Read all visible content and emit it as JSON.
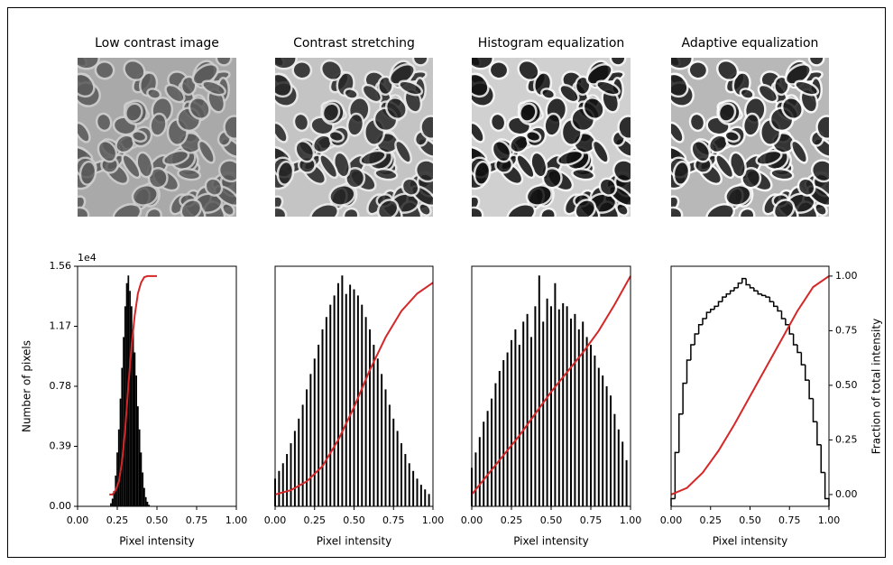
{
  "images": [
    {
      "title": "Low contrast image"
    },
    {
      "title": "Contrast stretching"
    },
    {
      "title": "Histogram equalization"
    },
    {
      "title": "Adaptive equalization"
    }
  ],
  "chart_data": [
    {
      "type": "histogram",
      "xlabel": "Pixel intensity",
      "ylabel": "Number of pixels",
      "yscale_label": "1e4",
      "xlim": [
        0,
        1
      ],
      "ylim": [
        0,
        1.56
      ],
      "y2lim": [
        -0.054,
        1.045
      ],
      "xticks": [
        {
          "value": 0,
          "label": "0.00"
        },
        0.25,
        {
          "value": 0.5,
          "label": "0.50"
        },
        0.75,
        {
          "value": 1,
          "label": "1.00"
        }
      ],
      "yticks": [
        {
          "value": 0,
          "label": "0.00"
        },
        0.39,
        0.78,
        1.17,
        1.56
      ],
      "series": [
        {
          "type": "bar",
          "color": "#000000",
          "rwidth": 1,
          "x": [
            0.21,
            0.22,
            0.23,
            0.24,
            0.25,
            0.26,
            0.27,
            0.28,
            0.29,
            0.3,
            0.31,
            0.32,
            0.33,
            0.34,
            0.35,
            0.36,
            0.37,
            0.38,
            0.39,
            0.4,
            0.41,
            0.42,
            0.43,
            0.44,
            0.45
          ],
          "values": [
            0.02,
            0.05,
            0.1,
            0.2,
            0.35,
            0.5,
            0.7,
            0.9,
            1.1,
            1.3,
            1.45,
            1.5,
            1.4,
            1.3,
            1.15,
            1.0,
            0.85,
            0.65,
            0.5,
            0.35,
            0.22,
            0.12,
            0.06,
            0.03,
            0.01
          ]
        },
        {
          "type": "line",
          "color": "#d62728",
          "axis": "y2",
          "x": [
            0.2,
            0.22,
            0.24,
            0.26,
            0.28,
            0.3,
            0.32,
            0.34,
            0.36,
            0.38,
            0.4,
            0.42,
            0.44,
            0.5
          ],
          "values": [
            0,
            0,
            0.02,
            0.06,
            0.15,
            0.3,
            0.5,
            0.68,
            0.82,
            0.92,
            0.97,
            0.995,
            1,
            1
          ]
        }
      ]
    },
    {
      "type": "histogram",
      "xlabel": "Pixel intensity",
      "xlim": [
        0,
        1
      ],
      "ylim": [
        0,
        1.56
      ],
      "y2lim": [
        -0.054,
        1.045
      ],
      "xticks": [
        {
          "value": 0,
          "label": "0.00"
        },
        0.25,
        {
          "value": 0.5,
          "label": "0.50"
        },
        0.75,
        {
          "value": 1,
          "label": "1.00"
        }
      ],
      "series": [
        {
          "type": "bar",
          "color": "#000000",
          "rwidth": 0.45,
          "x": [
            0,
            0.025,
            0.05,
            0.075,
            0.1,
            0.125,
            0.15,
            0.175,
            0.2,
            0.225,
            0.25,
            0.275,
            0.3,
            0.325,
            0.35,
            0.375,
            0.4,
            0.425,
            0.45,
            0.475,
            0.5,
            0.525,
            0.55,
            0.575,
            0.6,
            0.625,
            0.65,
            0.675,
            0.7,
            0.725,
            0.75,
            0.775,
            0.8,
            0.825,
            0.85,
            0.875,
            0.9,
            0.925,
            0.95,
            0.975
          ],
          "values": [
            0.18,
            0.23,
            0.28,
            0.34,
            0.41,
            0.49,
            0.57,
            0.66,
            0.76,
            0.86,
            0.96,
            1.05,
            1.15,
            1.23,
            1.31,
            1.37,
            1.45,
            1.5,
            1.38,
            1.44,
            1.41,
            1.37,
            1.31,
            1.23,
            1.15,
            1.05,
            0.96,
            0.86,
            0.76,
            0.66,
            0.57,
            0.49,
            0.41,
            0.34,
            0.28,
            0.23,
            0.18,
            0.14,
            0.11,
            0.08
          ]
        },
        {
          "type": "line",
          "color": "#d62728",
          "axis": "y2",
          "x": [
            0,
            0.1,
            0.2,
            0.3,
            0.4,
            0.5,
            0.6,
            0.7,
            0.8,
            0.9,
            1
          ],
          "values": [
            0,
            0.02,
            0.06,
            0.13,
            0.25,
            0.4,
            0.57,
            0.72,
            0.84,
            0.92,
            0.97
          ]
        }
      ]
    },
    {
      "type": "histogram",
      "xlabel": "Pixel intensity",
      "xlim": [
        0,
        1
      ],
      "ylim": [
        0,
        1.56
      ],
      "y2lim": [
        -0.054,
        1.045
      ],
      "xticks": [
        {
          "value": 0,
          "label": "0.00"
        },
        0.25,
        {
          "value": 0.5,
          "label": "0.50"
        },
        0.75,
        {
          "value": 1,
          "label": "1.00"
        }
      ],
      "series": [
        {
          "type": "bar",
          "color": "#000000",
          "rwidth": 0.45,
          "x": [
            0,
            0.025,
            0.05,
            0.075,
            0.1,
            0.125,
            0.15,
            0.175,
            0.2,
            0.225,
            0.25,
            0.275,
            0.3,
            0.325,
            0.35,
            0.375,
            0.4,
            0.425,
            0.45,
            0.475,
            0.5,
            0.525,
            0.55,
            0.575,
            0.6,
            0.625,
            0.65,
            0.675,
            0.7,
            0.725,
            0.75,
            0.775,
            0.8,
            0.825,
            0.85,
            0.875,
            0.9,
            0.925,
            0.95,
            0.975
          ],
          "values": [
            0.25,
            0.35,
            0.45,
            0.55,
            0.62,
            0.7,
            0.8,
            0.88,
            0.95,
            1.0,
            1.08,
            1.15,
            1.05,
            1.2,
            1.25,
            1.1,
            1.3,
            1.5,
            1.2,
            1.35,
            1.3,
            1.45,
            1.28,
            1.32,
            1.3,
            1.22,
            1.25,
            1.15,
            1.2,
            1.1,
            1.05,
            0.98,
            0.9,
            0.85,
            0.78,
            0.72,
            0.6,
            0.5,
            0.42,
            0.3
          ]
        },
        {
          "type": "line",
          "color": "#d62728",
          "axis": "y2",
          "x": [
            0,
            0.1,
            0.2,
            0.3,
            0.4,
            0.5,
            0.6,
            0.7,
            0.8,
            0.9,
            1
          ],
          "values": [
            0,
            0.09,
            0.18,
            0.27,
            0.37,
            0.47,
            0.56,
            0.65,
            0.75,
            0.87,
            1
          ]
        }
      ]
    },
    {
      "type": "histogram",
      "xlabel": "Pixel intensity",
      "y2label": "Fraction of total intensity",
      "xlim": [
        0,
        1
      ],
      "ylim": [
        0,
        1.56
      ],
      "y2lim": [
        -0.054,
        1.045
      ],
      "xticks": [
        {
          "value": 0,
          "label": "0.00"
        },
        0.25,
        {
          "value": 0.5,
          "label": "0.50"
        },
        0.75,
        {
          "value": 1,
          "label": "1.00"
        }
      ],
      "y2ticks": [
        {
          "value": 0,
          "label": "0.00"
        },
        0.25,
        {
          "value": 0.5,
          "label": "0.50"
        },
        0.75,
        {
          "value": 1,
          "label": "1.00"
        }
      ],
      "series": [
        {
          "type": "step",
          "color": "#000000",
          "bins": [
            0,
            0.025,
            0.05,
            0.075,
            0.1,
            0.125,
            0.15,
            0.175,
            0.2,
            0.225,
            0.25,
            0.275,
            0.3,
            0.325,
            0.35,
            0.375,
            0.4,
            0.425,
            0.45,
            0.475,
            0.5,
            0.525,
            0.55,
            0.575,
            0.6,
            0.625,
            0.65,
            0.675,
            0.7,
            0.725,
            0.75,
            0.775,
            0.8,
            0.825,
            0.85,
            0.875,
            0.9,
            0.925,
            0.95,
            0.975,
            1
          ],
          "values": [
            0.05,
            0.35,
            0.6,
            0.8,
            0.95,
            1.05,
            1.12,
            1.18,
            1.22,
            1.26,
            1.28,
            1.3,
            1.33,
            1.36,
            1.38,
            1.4,
            1.42,
            1.45,
            1.48,
            1.44,
            1.42,
            1.4,
            1.38,
            1.37,
            1.36,
            1.33,
            1.3,
            1.27,
            1.22,
            1.18,
            1.12,
            1.05,
            1.0,
            0.92,
            0.82,
            0.7,
            0.55,
            0.4,
            0.22,
            0.05
          ]
        },
        {
          "type": "line",
          "color": "#d62728",
          "axis": "y2",
          "x": [
            0,
            0.1,
            0.2,
            0.3,
            0.4,
            0.5,
            0.6,
            0.7,
            0.8,
            0.9,
            1
          ],
          "values": [
            0,
            0.03,
            0.1,
            0.2,
            0.32,
            0.45,
            0.58,
            0.71,
            0.84,
            0.95,
            1
          ]
        }
      ]
    }
  ]
}
